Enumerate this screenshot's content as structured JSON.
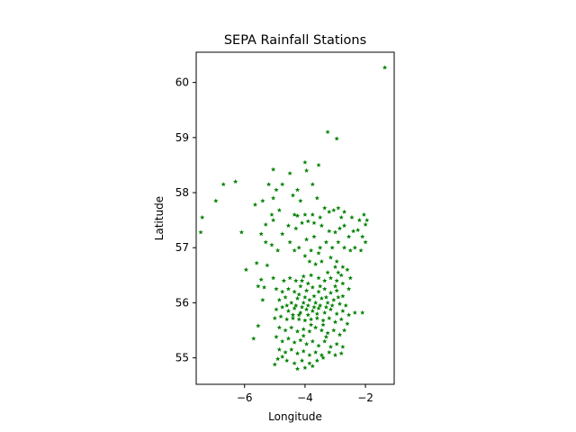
{
  "chart_data": {
    "type": "scatter",
    "title": "SEPA Rainfall Stations",
    "xlabel": "Longitude",
    "ylabel": "Latitude",
    "xlim": [
      -7.6,
      -1.05
    ],
    "ylim": [
      54.52,
      60.55
    ],
    "xticks": [
      -6,
      -4,
      -2
    ],
    "xtick_labels": [
      "−6",
      "−4",
      "−2"
    ],
    "yticks": [
      55,
      56,
      57,
      58,
      59,
      60
    ],
    "ytick_labels": [
      "55",
      "56",
      "57",
      "58",
      "59",
      "60"
    ],
    "grid": false,
    "marker": "star",
    "color": "#008000",
    "series": [
      {
        "points": [
          [
            -1.36,
            60.27
          ],
          [
            -3.25,
            59.1
          ],
          [
            -2.95,
            58.98
          ],
          [
            -3.55,
            58.5
          ],
          [
            -4.0,
            58.55
          ],
          [
            -3.95,
            58.4
          ],
          [
            -4.5,
            58.35
          ],
          [
            -5.05,
            58.42
          ],
          [
            -3.75,
            58.15
          ],
          [
            -5.2,
            58.15
          ],
          [
            -4.75,
            58.15
          ],
          [
            -4.95,
            58.05
          ],
          [
            -4.25,
            58.05
          ],
          [
            -5.05,
            57.9
          ],
          [
            -4.4,
            57.95
          ],
          [
            -4.15,
            57.85
          ],
          [
            -3.6,
            57.9
          ],
          [
            -5.4,
            57.85
          ],
          [
            -5.65,
            57.78
          ],
          [
            -6.3,
            58.2
          ],
          [
            -6.7,
            58.15
          ],
          [
            -6.95,
            57.85
          ],
          [
            -7.4,
            57.55
          ],
          [
            -7.45,
            57.28
          ],
          [
            -6.1,
            57.28
          ],
          [
            -5.1,
            57.6
          ],
          [
            -4.85,
            57.68
          ],
          [
            -4.35,
            57.6
          ],
          [
            -4.25,
            57.58
          ],
          [
            -4.0,
            57.6
          ],
          [
            -3.75,
            57.6
          ],
          [
            -3.5,
            57.55
          ],
          [
            -3.35,
            57.72
          ],
          [
            -3.2,
            57.65
          ],
          [
            -3.05,
            57.68
          ],
          [
            -2.9,
            57.72
          ],
          [
            -2.8,
            57.55
          ],
          [
            -2.7,
            57.65
          ],
          [
            -2.45,
            57.55
          ],
          [
            -2.2,
            57.5
          ],
          [
            -2.05,
            57.6
          ],
          [
            -1.95,
            57.5
          ],
          [
            -2.0,
            57.42
          ],
          [
            -2.25,
            57.32
          ],
          [
            -2.4,
            57.3
          ],
          [
            -2.55,
            57.2
          ],
          [
            -2.7,
            57.4
          ],
          [
            -2.85,
            57.35
          ],
          [
            -3.0,
            57.28
          ],
          [
            -3.2,
            57.3
          ],
          [
            -3.45,
            57.4
          ],
          [
            -3.7,
            57.45
          ],
          [
            -3.9,
            57.48
          ],
          [
            -4.1,
            57.45
          ],
          [
            -4.3,
            57.35
          ],
          [
            -4.55,
            57.4
          ],
          [
            -4.75,
            57.25
          ],
          [
            -5.05,
            57.5
          ],
          [
            -5.3,
            57.42
          ],
          [
            -5.45,
            57.25
          ],
          [
            -5.3,
            57.1
          ],
          [
            -5.1,
            57.05
          ],
          [
            -4.9,
            56.95
          ],
          [
            -4.5,
            57.1
          ],
          [
            -4.2,
            57.0
          ],
          [
            -3.95,
            57.15
          ],
          [
            -3.7,
            57.2
          ],
          [
            -3.5,
            57.0
          ],
          [
            -3.3,
            57.1
          ],
          [
            -3.1,
            57.0
          ],
          [
            -2.9,
            57.1
          ],
          [
            -2.7,
            57.0
          ],
          [
            -2.5,
            56.95
          ],
          [
            -2.35,
            57.0
          ],
          [
            -2.15,
            56.95
          ],
          [
            -2.0,
            57.1
          ],
          [
            -2.1,
            57.2
          ],
          [
            -3.8,
            56.95
          ],
          [
            -3.55,
            56.9
          ],
          [
            -4.35,
            56.95
          ],
          [
            -4.0,
            56.85
          ],
          [
            -3.85,
            56.75
          ],
          [
            -3.65,
            56.7
          ],
          [
            -3.45,
            56.75
          ],
          [
            -3.15,
            56.82
          ],
          [
            -2.95,
            56.75
          ],
          [
            -2.75,
            56.65
          ],
          [
            -2.6,
            56.6
          ],
          [
            -2.9,
            56.55
          ],
          [
            -5.95,
            56.6
          ],
          [
            -5.6,
            56.72
          ],
          [
            -5.25,
            56.68
          ],
          [
            -5.45,
            56.42
          ],
          [
            -5.35,
            56.28
          ],
          [
            -5.55,
            56.3
          ],
          [
            -5.4,
            56.05
          ],
          [
            -5.05,
            56.45
          ],
          [
            -4.7,
            56.4
          ],
          [
            -4.5,
            56.45
          ],
          [
            -4.3,
            56.4
          ],
          [
            -4.05,
            56.48
          ],
          [
            -3.8,
            56.5
          ],
          [
            -3.55,
            56.45
          ],
          [
            -3.35,
            56.4
          ],
          [
            -3.15,
            56.45
          ],
          [
            -2.95,
            56.4
          ],
          [
            -2.75,
            56.35
          ],
          [
            -2.55,
            56.25
          ],
          [
            -3.25,
            56.55
          ],
          [
            -4.95,
            56.25
          ],
          [
            -4.75,
            56.2
          ],
          [
            -4.55,
            56.25
          ],
          [
            -4.35,
            56.2
          ],
          [
            -4.15,
            56.3
          ],
          [
            -3.95,
            56.22
          ],
          [
            -3.75,
            56.28
          ],
          [
            -3.55,
            56.2
          ],
          [
            -3.35,
            56.25
          ],
          [
            -3.15,
            56.18
          ],
          [
            -2.95,
            56.22
          ],
          [
            -2.75,
            56.12
          ],
          [
            -4.85,
            56.05
          ],
          [
            -4.65,
            56.1
          ],
          [
            -4.45,
            56.0
          ],
          [
            -4.25,
            56.08
          ],
          [
            -4.05,
            56.0
          ],
          [
            -3.85,
            56.05
          ],
          [
            -3.65,
            56.0
          ],
          [
            -3.45,
            56.08
          ],
          [
            -3.25,
            56.0
          ],
          [
            -3.05,
            56.05
          ],
          [
            -2.85,
            55.98
          ],
          [
            -2.65,
            55.95
          ],
          [
            -4.95,
            55.88
          ],
          [
            -4.75,
            55.92
          ],
          [
            -4.55,
            55.85
          ],
          [
            -4.35,
            55.9
          ],
          [
            -4.15,
            55.82
          ],
          [
            -3.95,
            55.88
          ],
          [
            -3.75,
            55.85
          ],
          [
            -3.55,
            55.9
          ],
          [
            -3.35,
            55.82
          ],
          [
            -3.15,
            55.88
          ],
          [
            -2.95,
            55.8
          ],
          [
            -2.75,
            55.85
          ],
          [
            -2.55,
            55.78
          ],
          [
            -2.35,
            55.82
          ],
          [
            -2.1,
            55.82
          ],
          [
            -5.0,
            55.72
          ],
          [
            -4.8,
            55.75
          ],
          [
            -4.6,
            55.7
          ],
          [
            -4.4,
            55.72
          ],
          [
            -4.2,
            55.7
          ],
          [
            -4.0,
            55.68
          ],
          [
            -3.8,
            55.7
          ],
          [
            -3.6,
            55.72
          ],
          [
            -3.4,
            55.68
          ],
          [
            -3.2,
            55.72
          ],
          [
            -3.0,
            55.65
          ],
          [
            -2.8,
            55.7
          ],
          [
            -2.6,
            55.62
          ],
          [
            -5.55,
            55.58
          ],
          [
            -4.85,
            55.55
          ],
          [
            -4.65,
            55.5
          ],
          [
            -4.45,
            55.55
          ],
          [
            -4.25,
            55.48
          ],
          [
            -4.05,
            55.52
          ],
          [
            -3.85,
            55.48
          ],
          [
            -3.65,
            55.55
          ],
          [
            -3.45,
            55.5
          ],
          [
            -3.25,
            55.45
          ],
          [
            -3.05,
            55.5
          ],
          [
            -2.85,
            55.42
          ],
          [
            -2.7,
            55.5
          ],
          [
            -5.7,
            55.35
          ],
          [
            -4.95,
            55.38
          ],
          [
            -4.75,
            55.3
          ],
          [
            -4.55,
            55.35
          ],
          [
            -4.35,
            55.28
          ],
          [
            -4.15,
            55.32
          ],
          [
            -3.95,
            55.25
          ],
          [
            -3.75,
            55.3
          ],
          [
            -3.55,
            55.22
          ],
          [
            -3.35,
            55.3
          ],
          [
            -3.15,
            55.2
          ],
          [
            -2.95,
            55.25
          ],
          [
            -2.75,
            55.2
          ],
          [
            -4.85,
            55.15
          ],
          [
            -4.65,
            55.1
          ],
          [
            -4.45,
            55.15
          ],
          [
            -4.25,
            55.08
          ],
          [
            -4.05,
            55.12
          ],
          [
            -3.85,
            55.05
          ],
          [
            -3.65,
            55.1
          ],
          [
            -3.45,
            55.05
          ],
          [
            -3.2,
            55.1
          ],
          [
            -3.0,
            55.05
          ],
          [
            -2.8,
            55.08
          ],
          [
            -4.9,
            54.98
          ],
          [
            -4.6,
            54.95
          ],
          [
            -4.35,
            54.9
          ],
          [
            -4.1,
            54.95
          ],
          [
            -3.85,
            54.9
          ],
          [
            -3.6,
            54.95
          ],
          [
            -5.0,
            54.88
          ],
          [
            -4.25,
            54.8
          ],
          [
            -4.0,
            54.82
          ],
          [
            -3.75,
            54.85
          ],
          [
            -3.4,
            55.0
          ],
          [
            -4.75,
            55.02
          ],
          [
            -4.2,
            56.15
          ],
          [
            -4.0,
            56.1
          ],
          [
            -3.9,
            56.35
          ],
          [
            -4.1,
            56.4
          ],
          [
            -3.7,
            56.12
          ],
          [
            -3.5,
            56.3
          ],
          [
            -3.3,
            56.1
          ],
          [
            -4.3,
            55.95
          ],
          [
            -4.1,
            55.92
          ],
          [
            -3.9,
            55.95
          ],
          [
            -3.7,
            55.92
          ],
          [
            -3.5,
            55.95
          ],
          [
            -3.3,
            55.92
          ],
          [
            -3.1,
            55.95
          ],
          [
            -4.6,
            55.95
          ],
          [
            -4.4,
            55.78
          ],
          [
            -4.2,
            55.78
          ],
          [
            -3.9,
            55.78
          ],
          [
            -3.6,
            55.8
          ],
          [
            -3.4,
            55.6
          ],
          [
            -3.8,
            55.6
          ],
          [
            -4.05,
            55.4
          ],
          [
            -3.3,
            55.38
          ],
          [
            -2.9,
            56.1
          ],
          [
            -3.0,
            56.3
          ],
          [
            -2.8,
            56.5
          ],
          [
            -3.0,
            56.65
          ],
          [
            -2.5,
            56.45
          ]
        ]
      }
    ]
  }
}
